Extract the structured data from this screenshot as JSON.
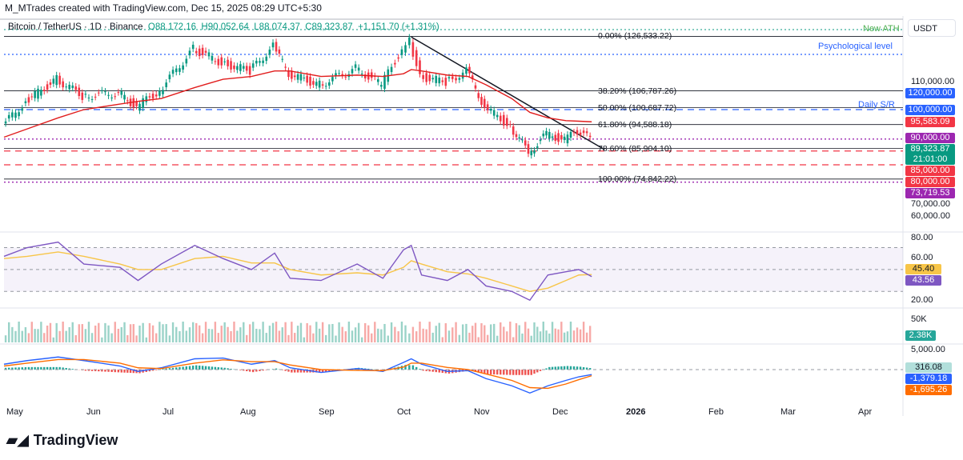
{
  "credit": "M_MTrades created with TradingView.com, Dec 15, 2025 08:29 UTC+5:30",
  "legend": {
    "symbol": "Bitcoin / TetherUS · 1D · Binance",
    "open": "O88,172.16",
    "high": "H90,052.64",
    "low": "L88,074.37",
    "close": "C89,323.87",
    "change": "+1,151.70 (+1.31%)"
  },
  "currency": "USDT",
  "logo": "TradingView",
  "annotations": {
    "ath": "New ATH",
    "psych": "Psychological level",
    "sr": "Daily S/R"
  },
  "fib": [
    {
      "label": "0.00% (126,533.22)",
      "price": 126533
    },
    {
      "label": "38.20% (106,787.26)",
      "price": 106787
    },
    {
      "label": "50.00% (100,687.72)",
      "price": 100688
    },
    {
      "label": "61.80% (94,588.18)",
      "price": 94588
    },
    {
      "label": "78.60% (85,904.10)",
      "price": 85904
    },
    {
      "label": "100.00% (74,842.22)",
      "price": 74842
    }
  ],
  "price_tags": [
    {
      "text": "120,000.00",
      "price": 120000,
      "color": "#2962ff"
    },
    {
      "text": "100,000.00",
      "price": 100000,
      "color": "#2962ff"
    },
    {
      "text": "95,583.09",
      "price": 95583,
      "color": "#f23645"
    },
    {
      "text": "90,000.00",
      "price": 90000,
      "color": "#9c27b0"
    },
    {
      "text": "89,323.87",
      "price": 89323,
      "color": "#089981"
    },
    {
      "text": "85,000.00",
      "price": 85000,
      "color": "#f23645"
    },
    {
      "text": "80,000.00",
      "price": 80000,
      "color": "#f23645"
    },
    {
      "text": "73,719.53",
      "price": 73719,
      "color": "#9c27b0"
    }
  ],
  "countdown": "21:01:00",
  "price_axis": [
    "110,000.00",
    "70,000.00",
    "60,000.00"
  ],
  "rsi_axis": [
    "80.00",
    "60.00",
    "20.00"
  ],
  "rsi_tags": [
    {
      "text": "45.40",
      "color": "#f7c548",
      "fg": "#131722"
    },
    {
      "text": "43.56",
      "color": "#7e57c2",
      "fg": "#fff"
    }
  ],
  "vol_axis": "50K",
  "vol_tag": "2.38K",
  "macd_axis": "5,000.00",
  "macd_tags": [
    {
      "text": "316.08",
      "color": "#b2dfdb",
      "fg": "#131722"
    },
    {
      "text": "-1,379.18",
      "color": "#2962ff",
      "fg": "#fff"
    },
    {
      "text": "-1,695.26",
      "color": "#ff6d00",
      "fg": "#fff"
    }
  ],
  "x_labels": [
    "May",
    "Jun",
    "Jul",
    "Aug",
    "Sep",
    "Oct",
    "Nov",
    "Dec",
    "2026",
    "Feb",
    "Mar",
    "Apr"
  ],
  "chart_data": {
    "type": "candlestick",
    "title": "Bitcoin / TetherUS · 1D · Binance",
    "x": [
      "2025-05-01",
      "2025-05-10",
      "2025-05-22",
      "2025-06-01",
      "2025-06-15",
      "2025-06-22",
      "2025-07-01",
      "2025-07-14",
      "2025-07-25",
      "2025-08-05",
      "2025-08-14",
      "2025-08-20",
      "2025-09-01",
      "2025-09-15",
      "2025-09-25",
      "2025-10-03",
      "2025-10-06",
      "2025-10-10",
      "2025-10-20",
      "2025-10-28",
      "2025-11-04",
      "2025-11-14",
      "2025-11-21",
      "2025-11-28",
      "2025-12-05",
      "2025-12-10",
      "2025-12-15"
    ],
    "close": [
      94000,
      103000,
      111000,
      105000,
      106000,
      101000,
      107000,
      122000,
      117000,
      114000,
      123000,
      113000,
      109000,
      115000,
      109000,
      122000,
      125000,
      112000,
      110000,
      114000,
      101000,
      94000,
      84500,
      91000,
      89000,
      92000,
      89324
    ],
    "ema": [
      90000,
      93000,
      97000,
      100000,
      102000,
      103000,
      104000,
      108000,
      111000,
      112000,
      114000,
      114000,
      112000,
      112500,
      112000,
      113000,
      114500,
      114000,
      112500,
      112000,
      109000,
      104000,
      99000,
      97000,
      96000,
      95800,
      95583
    ],
    "rsi": [
      62,
      70,
      75,
      55,
      52,
      40,
      55,
      72,
      60,
      50,
      65,
      42,
      40,
      55,
      42,
      68,
      72,
      45,
      40,
      50,
      35,
      30,
      22,
      45,
      48,
      50,
      43.56
    ],
    "rsi_ma": [
      60,
      62,
      66,
      62,
      55,
      50,
      50,
      60,
      62,
      56,
      56,
      50,
      45,
      47,
      45,
      52,
      58,
      55,
      48,
      46,
      42,
      35,
      30,
      33,
      40,
      45,
      45.4
    ],
    "macd": [
      1500,
      2500,
      3500,
      2500,
      1000,
      -500,
      500,
      3000,
      3200,
      1500,
      2500,
      500,
      -800,
      300,
      -500,
      2000,
      3000,
      1500,
      -500,
      -300,
      -2500,
      -4500,
      -6500,
      -4500,
      -3000,
      -2000,
      -1379
    ],
    "signal": [
      1000,
      1800,
      2800,
      2800,
      1800,
      500,
      300,
      1800,
      2700,
      2200,
      2200,
      1300,
      0,
      -200,
      -300,
      700,
      1800,
      1800,
      600,
      0,
      -1200,
      -3000,
      -5000,
      -5200,
      -4000,
      -2800,
      -1695
    ],
    "ylim": [
      60000,
      130000
    ],
    "rsi_ylim": [
      20,
      80
    ]
  }
}
